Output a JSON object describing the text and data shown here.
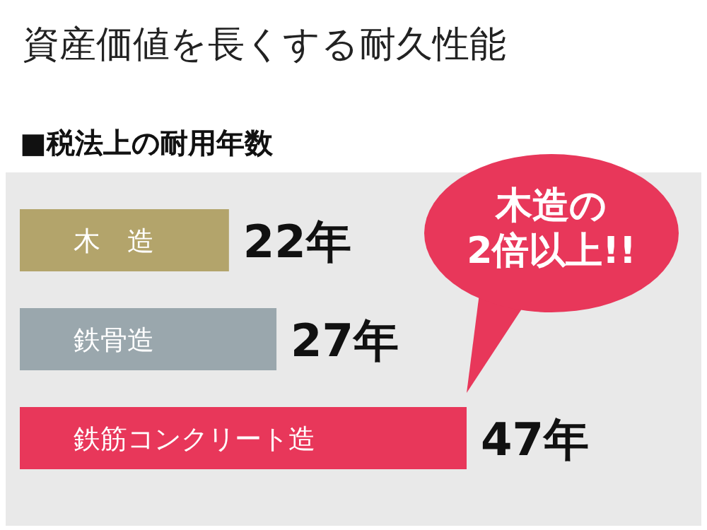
{
  "chart_data": {
    "type": "bar",
    "orientation": "horizontal",
    "title": "資産価値を長くする耐久性能",
    "subtitle": "■税法上の耐用年数",
    "categories": [
      "木　造",
      "鉄骨造",
      "鉄筋コンクリート造"
    ],
    "values": [
      22,
      27,
      47
    ],
    "colors": [
      "#b3a46b",
      "#9aa7ad",
      "#e8375a"
    ],
    "value_labels": [
      "22年",
      "27年",
      "47年"
    ],
    "annotations": [
      "木造の\n2倍以上!!"
    ]
  }
}
